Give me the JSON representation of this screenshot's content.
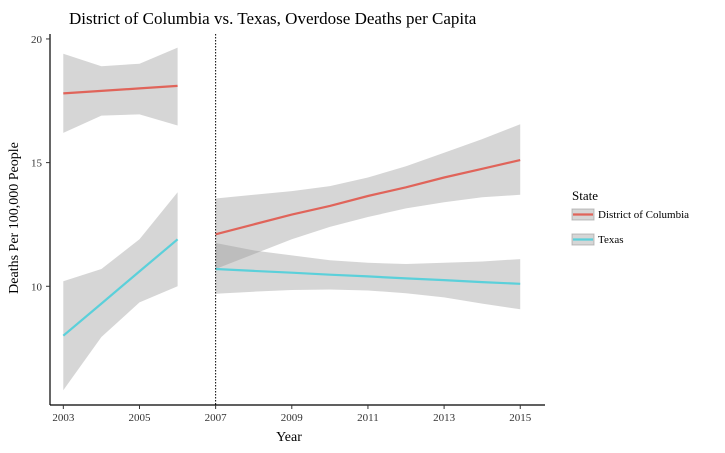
{
  "chart_data": {
    "type": "line",
    "title": "District of Columbia vs. Texas, Overdose Deaths per Capita",
    "xlabel": "Year",
    "ylabel": "Deaths Per 100,000 People",
    "xlim": [
      2002.65,
      2015.65
    ],
    "ylim": [
      5.2,
      20.2
    ],
    "x_ticks": [
      "2003",
      "2005",
      "2007",
      "2009",
      "2011",
      "2013",
      "2015"
    ],
    "x_tick_values": [
      2003,
      2005,
      2007,
      2009,
      2011,
      2013,
      2015
    ],
    "y_ticks": [
      "10",
      "15",
      "20"
    ],
    "y_tick_values": [
      10,
      15,
      20
    ],
    "reference_line_x": 2007,
    "legend": {
      "title": "State",
      "position": "right"
    },
    "series": [
      {
        "name": "District of Columbia",
        "color": "#E0645A",
        "segments": [
          {
            "x": [
              2003,
              2004,
              2005,
              2006
            ],
            "y": [
              17.8,
              17.9,
              18.0,
              18.1
            ],
            "lower": [
              16.2,
              16.9,
              16.95,
              16.5
            ],
            "upper": [
              19.4,
              18.9,
              19.0,
              19.65
            ]
          },
          {
            "x": [
              2007,
              2008,
              2009,
              2010,
              2011,
              2012,
              2013,
              2014,
              2015
            ],
            "y": [
              12.1,
              12.5,
              12.9,
              13.25,
              13.65,
              14.0,
              14.4,
              14.75,
              15.1
            ],
            "lower": [
              10.7,
              11.3,
              11.9,
              12.4,
              12.8,
              13.15,
              13.4,
              13.6,
              13.7
            ],
            "upper": [
              13.55,
              13.7,
              13.85,
              14.05,
              14.4,
              14.85,
              15.4,
              15.95,
              16.55
            ]
          }
        ]
      },
      {
        "name": "Texas",
        "color": "#5BD0DA",
        "segments": [
          {
            "x": [
              2003,
              2004,
              2005,
              2006
            ],
            "y": [
              8.0,
              9.3,
              10.6,
              11.9
            ],
            "lower": [
              5.8,
              7.95,
              9.35,
              10.0
            ],
            "upper": [
              10.2,
              10.7,
              11.9,
              13.8
            ]
          },
          {
            "x": [
              2007,
              2008,
              2009,
              2010,
              2011,
              2012,
              2013,
              2014,
              2015
            ],
            "y": [
              10.7,
              10.62,
              10.55,
              10.47,
              10.4,
              10.32,
              10.25,
              10.17,
              10.1
            ],
            "lower": [
              9.7,
              9.78,
              9.85,
              9.87,
              9.83,
              9.72,
              9.55,
              9.3,
              9.07
            ],
            "upper": [
              11.75,
              11.45,
              11.25,
              11.05,
              10.95,
              10.9,
              10.95,
              11.0,
              11.1
            ]
          }
        ]
      }
    ]
  }
}
